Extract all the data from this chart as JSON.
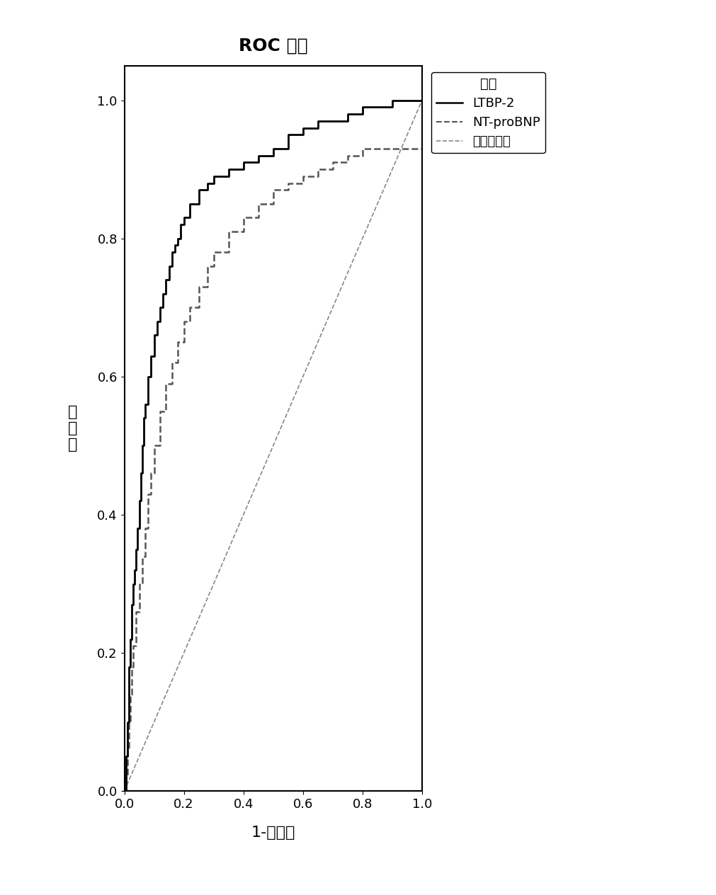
{
  "title": "ROC 曲线",
  "xlabel": "1-特异性",
  "ylabel": "敏\n感\n度",
  "xlim": [
    0.0,
    1.0
  ],
  "ylim": [
    0.0,
    1.05
  ],
  "xticks": [
    0.0,
    0.2,
    0.4,
    0.6,
    0.8,
    1.0
  ],
  "yticks": [
    0.0,
    0.2,
    0.4,
    0.6,
    0.8,
    1.0
  ],
  "legend_title": "图例",
  "legend_labels": [
    "LTBP-2",
    "NT-proBNP",
    "参考对角线"
  ],
  "background_color": "#ffffff",
  "line_color_ltbp2": "#000000",
  "line_color_ntprobnp": "#555555",
  "line_color_ref": "#888888",
  "title_fontsize": 18,
  "label_fontsize": 16,
  "tick_fontsize": 13,
  "legend_fontsize": 13,
  "LTBP2_x": [
    0.0,
    0.005,
    0.01,
    0.015,
    0.02,
    0.025,
    0.03,
    0.035,
    0.04,
    0.045,
    0.05,
    0.055,
    0.06,
    0.065,
    0.07,
    0.08,
    0.09,
    0.1,
    0.11,
    0.12,
    0.13,
    0.14,
    0.15,
    0.16,
    0.17,
    0.18,
    0.19,
    0.2,
    0.22,
    0.25,
    0.28,
    0.3,
    0.35,
    0.4,
    0.45,
    0.5,
    0.55,
    0.6,
    0.65,
    0.7,
    0.75,
    0.8,
    0.85,
    0.9,
    0.95,
    1.0
  ],
  "LTBP2_y": [
    0.0,
    0.05,
    0.1,
    0.18,
    0.22,
    0.27,
    0.3,
    0.32,
    0.35,
    0.38,
    0.42,
    0.46,
    0.5,
    0.54,
    0.56,
    0.6,
    0.63,
    0.66,
    0.68,
    0.7,
    0.72,
    0.74,
    0.76,
    0.78,
    0.79,
    0.8,
    0.82,
    0.83,
    0.85,
    0.87,
    0.88,
    0.89,
    0.9,
    0.91,
    0.92,
    0.93,
    0.95,
    0.96,
    0.97,
    0.97,
    0.98,
    0.99,
    0.99,
    1.0,
    1.0,
    1.0
  ],
  "NTproBNP_x": [
    0.0,
    0.005,
    0.01,
    0.015,
    0.02,
    0.025,
    0.03,
    0.04,
    0.05,
    0.06,
    0.07,
    0.08,
    0.09,
    0.1,
    0.12,
    0.14,
    0.16,
    0.18,
    0.2,
    0.22,
    0.25,
    0.28,
    0.3,
    0.35,
    0.4,
    0.45,
    0.5,
    0.55,
    0.6,
    0.65,
    0.7,
    0.75,
    0.8,
    0.85,
    0.9,
    0.95,
    1.0
  ],
  "NTproBNP_y": [
    0.0,
    0.02,
    0.06,
    0.1,
    0.14,
    0.18,
    0.21,
    0.26,
    0.3,
    0.34,
    0.38,
    0.43,
    0.46,
    0.5,
    0.55,
    0.59,
    0.62,
    0.65,
    0.68,
    0.7,
    0.73,
    0.76,
    0.78,
    0.81,
    0.83,
    0.85,
    0.87,
    0.88,
    0.89,
    0.9,
    0.91,
    0.92,
    0.93,
    0.93,
    0.93,
    0.93,
    0.93
  ]
}
